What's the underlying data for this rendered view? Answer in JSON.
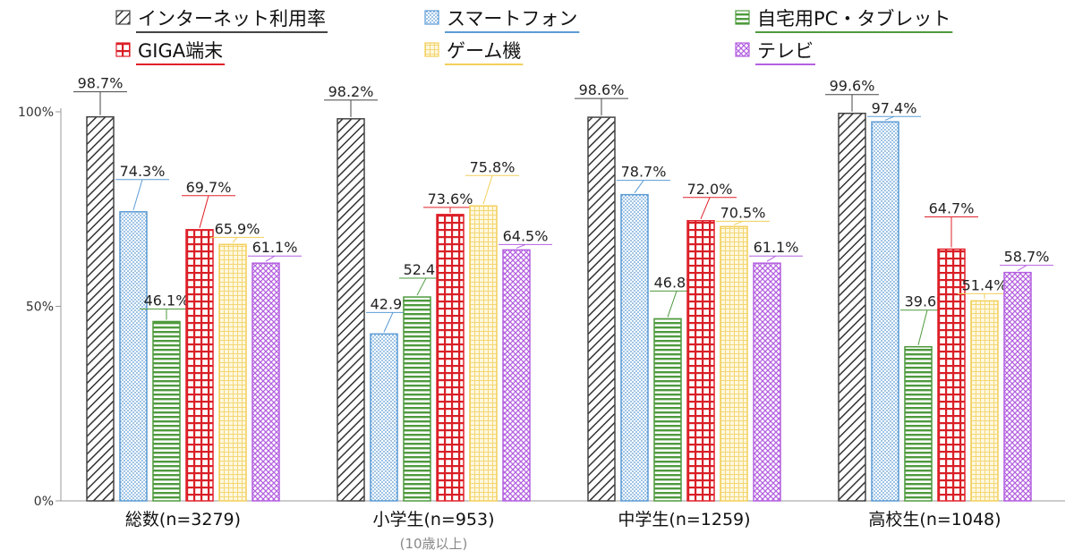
{
  "chart_data": {
    "type": "bar",
    "categories": [
      "総数(n=3279)",
      "小学生(n=953)",
      "中学生(n=1259)",
      "高校生(n=1048)"
    ],
    "category_sublabels": [
      "",
      "(10歳以上)",
      "",
      ""
    ],
    "series": [
      {
        "name": "インターネット利用率",
        "values": [
          98.7,
          98.2,
          98.6,
          99.6
        ],
        "color": "#444444",
        "pattern": "diagonal-hatch"
      },
      {
        "name": "スマートフォン",
        "values": [
          74.3,
          42.9,
          78.7,
          97.4
        ],
        "color": "#5b9bd5",
        "pattern": "dots"
      },
      {
        "name": "自宅用PC・タブレット",
        "values": [
          46.1,
          52.4,
          46.8,
          39.6
        ],
        "color": "#4e9a3d",
        "pattern": "horizontal-lines"
      },
      {
        "name": "GIGA端末",
        "values": [
          69.7,
          73.6,
          72.0,
          64.7
        ],
        "color": "#e0202a",
        "pattern": "grid"
      },
      {
        "name": "ゲーム機",
        "values": [
          65.9,
          75.8,
          70.5,
          51.4
        ],
        "color": "#f2cf5b",
        "pattern": "light-grid"
      },
      {
        "name": "テレビ",
        "values": [
          61.1,
          64.5,
          61.1,
          58.7
        ],
        "color": "#b460e0",
        "pattern": "crosshatch"
      }
    ],
    "data_labels": [
      [
        "98.7%",
        "98.2%",
        "98.6%",
        "99.6%"
      ],
      [
        "74.3%",
        "42.9%",
        "78.7%",
        "97.4%"
      ],
      [
        "46.1%",
        "52.4%",
        "46.8%",
        "39.6%"
      ],
      [
        "69.7%",
        "73.6%",
        "72.0%",
        "64.7%"
      ],
      [
        "65.9%",
        "75.8%",
        "70.5%",
        "51.4%"
      ],
      [
        "61.1%",
        "64.5%",
        "61.1%",
        "58.7%"
      ]
    ],
    "yticks": [
      "0%",
      "50%",
      "100%"
    ],
    "ylim": [
      0,
      100
    ],
    "legend_position": "top",
    "grid": false
  }
}
